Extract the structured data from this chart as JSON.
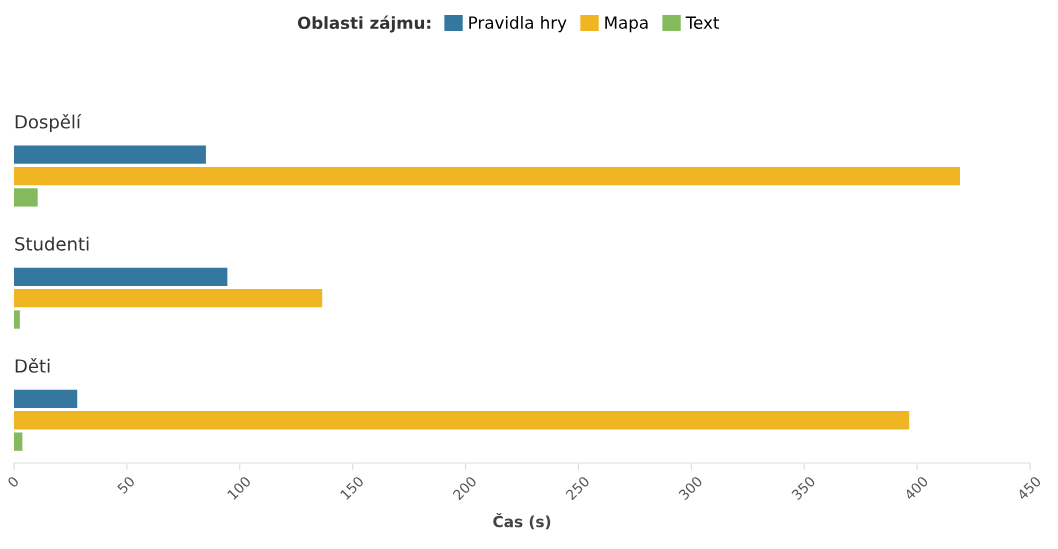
{
  "chart_data": {
    "type": "bar",
    "orientation": "horizontal",
    "xlabel": "Čas (s)",
    "legend_title": "Oblasti zájmu:",
    "legend": "top",
    "categories": [
      "Dospělí",
      "Studenti",
      "Děti"
    ],
    "series": [
      {
        "name": "Pravidla hry",
        "color": "#35789f",
        "values": [
          85,
          94.5,
          28
        ]
      },
      {
        "name": "Mapa",
        "color": "#efb522",
        "values": [
          419,
          136.5,
          396.5
        ]
      },
      {
        "name": "Text",
        "color": "#84b95c",
        "values": [
          10.5,
          2.6,
          3.7
        ]
      }
    ],
    "xlim": [
      0,
      450
    ],
    "xticks": [
      0,
      50,
      100,
      150,
      200,
      250,
      300,
      350,
      400,
      450
    ],
    "grid": false
  }
}
